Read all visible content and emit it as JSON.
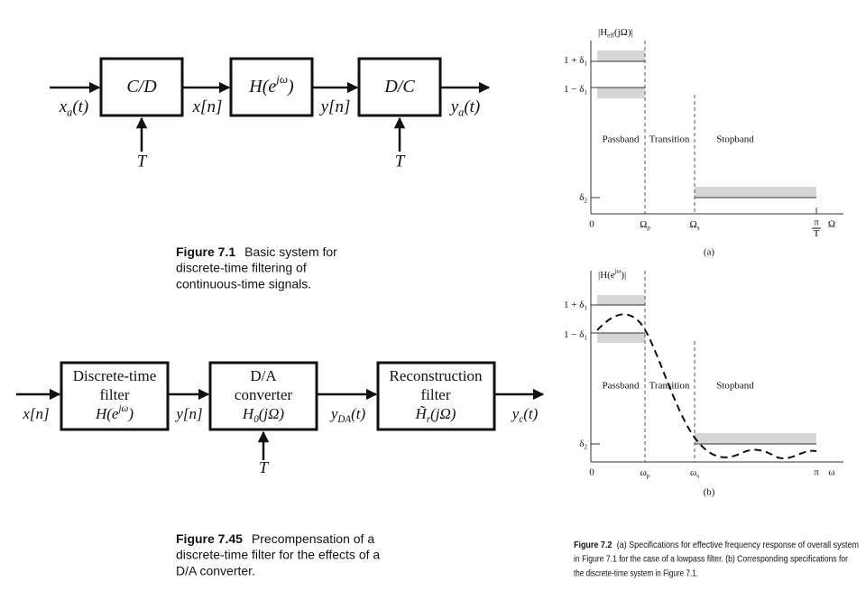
{
  "fig_7_1": {
    "blocks": [
      {
        "text": "C/D"
      },
      {
        "text": "H(e",
        "sup": "jω",
        "tail": ")"
      },
      {
        "text": "D/C"
      }
    ],
    "signals": [
      {
        "text": "x",
        "sub": "a",
        "tail": "(t)"
      },
      {
        "text": "x[n]"
      },
      {
        "text": "y[n]"
      },
      {
        "text": "y",
        "sub": "a",
        "tail": "(t)"
      }
    ],
    "sampling": [
      "T",
      "T"
    ],
    "caption": {
      "label": "Figure 7.1",
      "lines": [
        "Basic system for",
        "discrete-time filtering of",
        "continuous-time signals."
      ]
    }
  },
  "fig_7_45": {
    "blocks": [
      {
        "lines": [
          "Discrete-time",
          "filter",
          {
            "text": "H(e",
            "sup": "jω",
            "tail": ")"
          }
        ]
      },
      {
        "lines": [
          "D/A",
          "converter",
          {
            "text": "H",
            "sub": "0",
            "tail": "(jΩ)"
          }
        ]
      },
      {
        "lines": [
          "Reconstruction",
          "filter",
          {
            "text": "H̃",
            "sub": "r",
            "tail": "(jΩ)"
          }
        ]
      }
    ],
    "signals": [
      {
        "text": "x[n]"
      },
      {
        "text": "y[n]"
      },
      {
        "text": "y",
        "sub": "DA",
        "tail": "(t)"
      },
      {
        "text": "y",
        "sub": "c",
        "tail": "(t)"
      }
    ],
    "sampling": [
      "T"
    ],
    "caption": {
      "label": "Figure 7.45",
      "lines": [
        "Precompensation of a",
        "discrete-time filter for the effects of a",
        "D/A converter."
      ]
    }
  },
  "fig_7_2": {
    "a": {
      "y_label": {
        "text": "|H",
        "sub": "eff",
        "tail": "(jΩ)|"
      },
      "levels": [
        {
          "text": "1 + δ",
          "sub": "1"
        },
        {
          "text": "1 − δ",
          "sub": "1"
        },
        {
          "text": "δ",
          "sub": "2"
        }
      ],
      "x_labels": [
        "0",
        {
          "text": "Ω",
          "sub": "p"
        },
        {
          "text": "Ω",
          "sub": "s"
        },
        {
          "num": "π",
          "den": "T"
        },
        "Ω"
      ],
      "regions": [
        "Passband",
        "Transition",
        "Stopband"
      ],
      "panel": "(a)"
    },
    "b": {
      "y_label": {
        "text": "|H(e",
        "sup": "jω",
        "tail": ")|"
      },
      "levels": [
        {
          "text": "1 + δ",
          "sub": "1"
        },
        {
          "text": "1 − δ",
          "sub": "1"
        },
        {
          "text": "δ",
          "sub": "2"
        }
      ],
      "x_labels": [
        "0",
        {
          "text": "ω",
          "sub": "p"
        },
        {
          "text": "ω",
          "sub": "s"
        },
        "π",
        "ω"
      ],
      "regions": [
        "Passband",
        "Transition",
        "Stopband"
      ],
      "panel": "(b)"
    },
    "caption": {
      "label": "Figure 7.2",
      "lines": [
        "(a) Specifications for effective frequency response of overall system",
        "in Figure 7.1 for the case of a lowpass filter. (b) Corresponding specifications for",
        "the discrete-time system in Figure 7.1."
      ]
    }
  }
}
